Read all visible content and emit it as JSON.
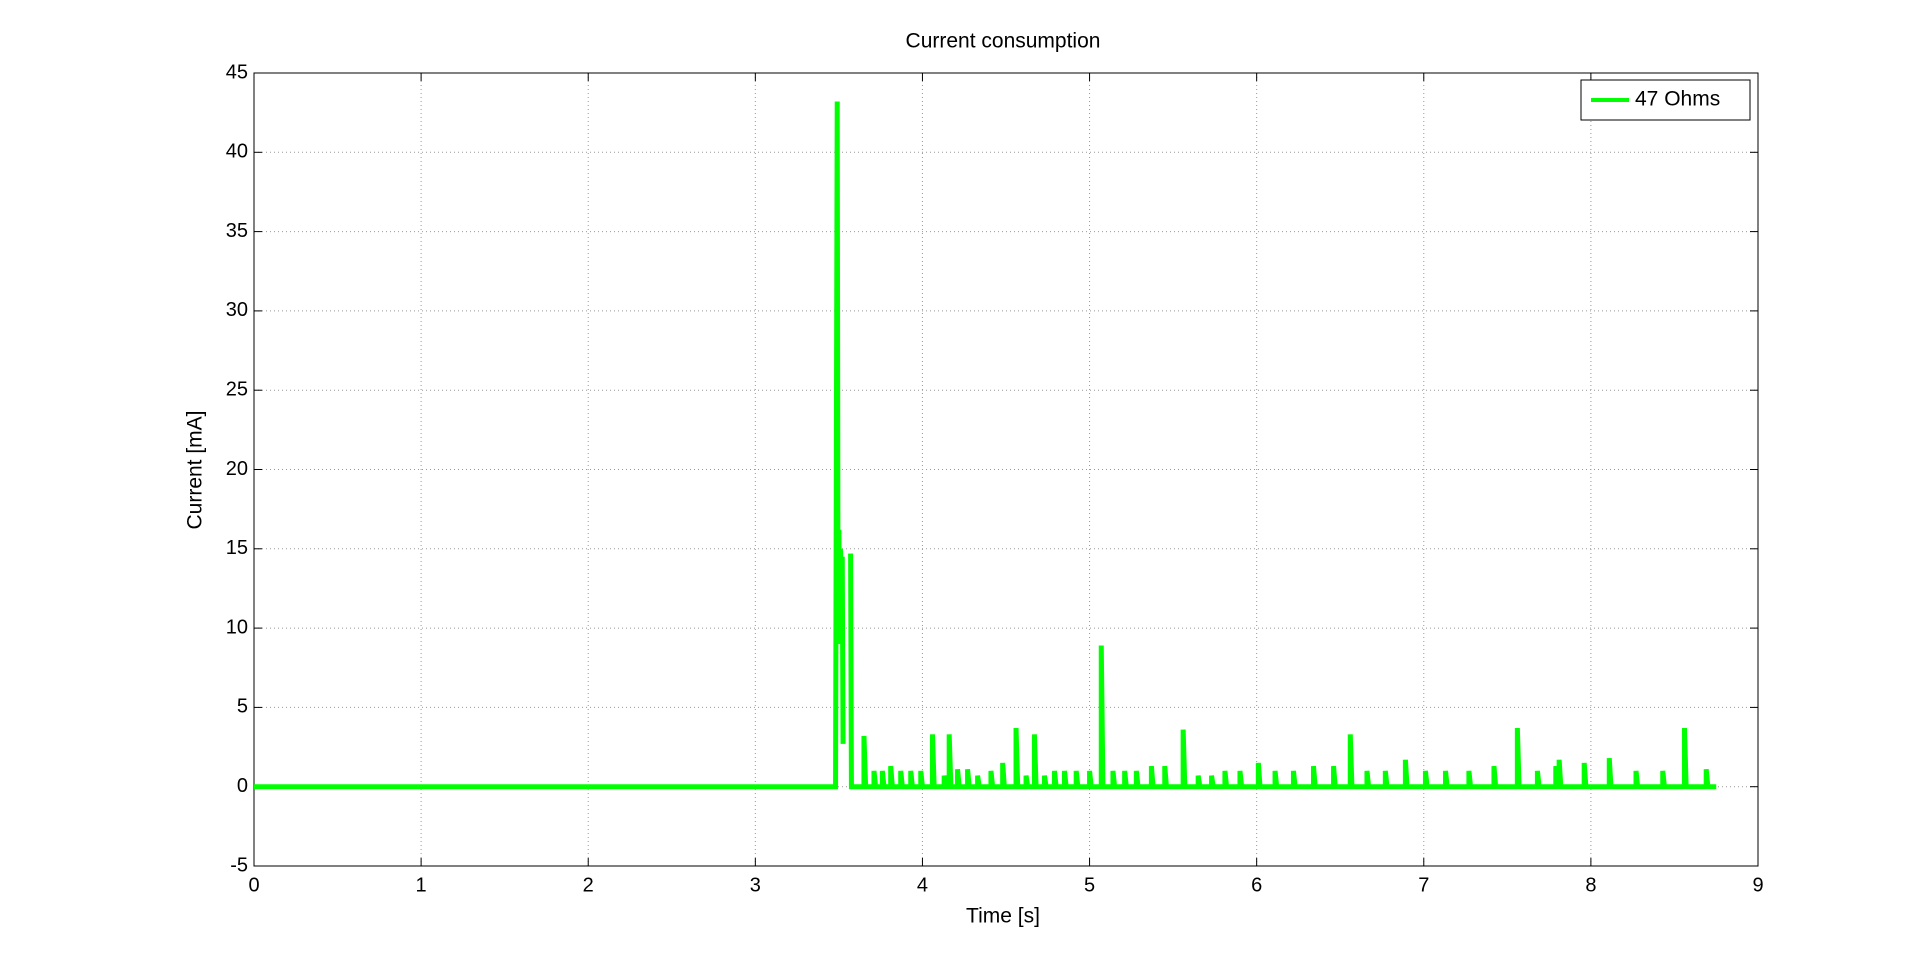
{
  "chart_data": {
    "type": "line",
    "title": "Current consumption",
    "xlabel": "Time [s]",
    "ylabel": "Current [mA]",
    "xlim": [
      0,
      9
    ],
    "ylim": [
      -5,
      45
    ],
    "xticks": [
      0,
      1,
      2,
      3,
      4,
      5,
      6,
      7,
      8,
      9
    ],
    "yticks": [
      -5,
      0,
      5,
      10,
      15,
      20,
      25,
      30,
      35,
      40,
      45
    ],
    "grid": true,
    "legend": "upper right",
    "series": [
      {
        "name": "47 Ohms",
        "color": "#00ff00",
        "x": [
          0,
          3.48,
          3.49,
          3.495,
          3.5,
          3.505,
          3.51,
          3.515,
          3.52,
          3.525,
          3.53,
          3.57,
          3.575,
          3.65,
          3.65,
          3.66,
          3.71,
          3.71,
          3.72,
          3.76,
          3.76,
          3.77,
          3.81,
          3.81,
          3.82,
          3.87,
          3.87,
          3.88,
          3.93,
          3.93,
          3.94,
          3.99,
          3.99,
          4.0,
          4.06,
          4.06,
          4.07,
          4.13,
          4.13,
          4.14,
          4.16,
          4.16,
          4.17,
          4.21,
          4.21,
          4.22,
          4.27,
          4.27,
          4.28,
          4.33,
          4.33,
          4.34,
          4.41,
          4.41,
          4.42,
          4.48,
          4.48,
          4.49,
          4.56,
          4.56,
          4.57,
          4.62,
          4.62,
          4.63,
          4.67,
          4.67,
          4.68,
          4.73,
          4.73,
          4.74,
          4.79,
          4.79,
          4.8,
          4.85,
          4.85,
          4.86,
          4.92,
          4.92,
          4.93,
          5.0,
          5.0,
          5.01,
          5.07,
          5.07,
          5.08,
          5.14,
          5.14,
          5.15,
          5.21,
          5.21,
          5.22,
          5.28,
          5.28,
          5.29,
          5.37,
          5.37,
          5.38,
          5.45,
          5.45,
          5.46,
          5.56,
          5.56,
          5.57,
          5.65,
          5.65,
          5.66,
          5.73,
          5.73,
          5.74,
          5.81,
          5.81,
          5.82,
          5.9,
          5.9,
          5.91,
          6.01,
          6.01,
          6.02,
          6.11,
          6.11,
          6.12,
          6.22,
          6.22,
          6.23,
          6.34,
          6.34,
          6.35,
          6.46,
          6.46,
          6.47,
          6.56,
          6.56,
          6.57,
          6.66,
          6.66,
          6.67,
          6.77,
          6.77,
          6.78,
          6.89,
          6.89,
          6.9,
          7.01,
          7.01,
          7.02,
          7.13,
          7.13,
          7.14,
          7.27,
          7.27,
          7.28,
          7.42,
          7.42,
          7.43,
          7.56,
          7.56,
          7.57,
          7.68,
          7.68,
          7.69,
          7.79,
          7.79,
          7.8,
          7.81,
          7.81,
          7.82,
          7.96,
          7.96,
          7.97,
          8.11,
          8.11,
          8.12,
          8.27,
          8.27,
          8.28,
          8.43,
          8.43,
          8.44,
          8.56,
          8.56,
          8.57,
          8.69,
          8.69,
          8.7,
          8.75
        ],
        "values": [
          0,
          0,
          43.2,
          9,
          16.2,
          10,
          15,
          12,
          14.5,
          2.7,
          null,
          14.7,
          0,
          0,
          3.2,
          0,
          0,
          1,
          0,
          0,
          1,
          0,
          0,
          1.3,
          0,
          0,
          1,
          0,
          0,
          1,
          0,
          0,
          1,
          0,
          0,
          3.3,
          0,
          0,
          0.7,
          0,
          0,
          3.3,
          0,
          0,
          1.1,
          0,
          0,
          1.1,
          0,
          0,
          0.7,
          0,
          0,
          1,
          0,
          0,
          1.5,
          0,
          0,
          3.7,
          0,
          0,
          0.7,
          0,
          0,
          3.3,
          0,
          0,
          0.7,
          0,
          0,
          1,
          0,
          0,
          1,
          0,
          0,
          1,
          0,
          0,
          1,
          0,
          0,
          8.9,
          0,
          0,
          1,
          0,
          0,
          1,
          0,
          0,
          1,
          0,
          0,
          1.3,
          0,
          0,
          1.3,
          0,
          0,
          3.6,
          0,
          0,
          0.7,
          0,
          0,
          0.7,
          0,
          0,
          1,
          0,
          0,
          1,
          0,
          0,
          1.5,
          0,
          0,
          1,
          0,
          0,
          1,
          0,
          0,
          1.3,
          0,
          0,
          1.3,
          0,
          0,
          3.3,
          0,
          0,
          1,
          0,
          0,
          1,
          0,
          0,
          1.7,
          0,
          0,
          1,
          0,
          0,
          1,
          0,
          0,
          1,
          0,
          0,
          1.3,
          0,
          0,
          3.7,
          0,
          0,
          1,
          0,
          0,
          1.3,
          0,
          0,
          1.7,
          0,
          0,
          1.5,
          0,
          0,
          1.8,
          0,
          0,
          1,
          0,
          0,
          1,
          0,
          0,
          3.7,
          0,
          0,
          1.1,
          0,
          0
        ]
      }
    ]
  }
}
